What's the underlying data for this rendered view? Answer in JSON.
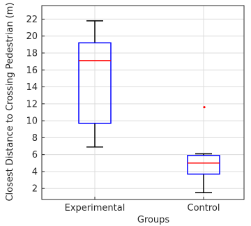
{
  "chart_data": {
    "type": "boxplot",
    "xlabel": "Groups",
    "ylabel": "Closest Distance to Crossing Pedestrian (m)",
    "ylim": [
      0.7,
      23.6
    ],
    "yticks": [
      2,
      4,
      6,
      8,
      10,
      12,
      14,
      16,
      18,
      20,
      22
    ],
    "grid": true,
    "categories": [
      "Experimental",
      "Control"
    ],
    "series": [
      {
        "whisker_low": 6.9,
        "q1": 9.7,
        "median": 17.1,
        "q3": 19.2,
        "whisker_high": 21.8,
        "outliers": []
      },
      {
        "whisker_low": 1.5,
        "q1": 3.7,
        "median": 5.0,
        "q3": 5.9,
        "whisker_high": 6.1,
        "outliers": [
          11.6
        ]
      }
    ],
    "colors": {
      "box": "#0000ff",
      "median": "#ff0000",
      "whisker": "#000000",
      "outlier": "#ff0000",
      "grid": "#dcdcdc",
      "axis": "#262626"
    }
  }
}
